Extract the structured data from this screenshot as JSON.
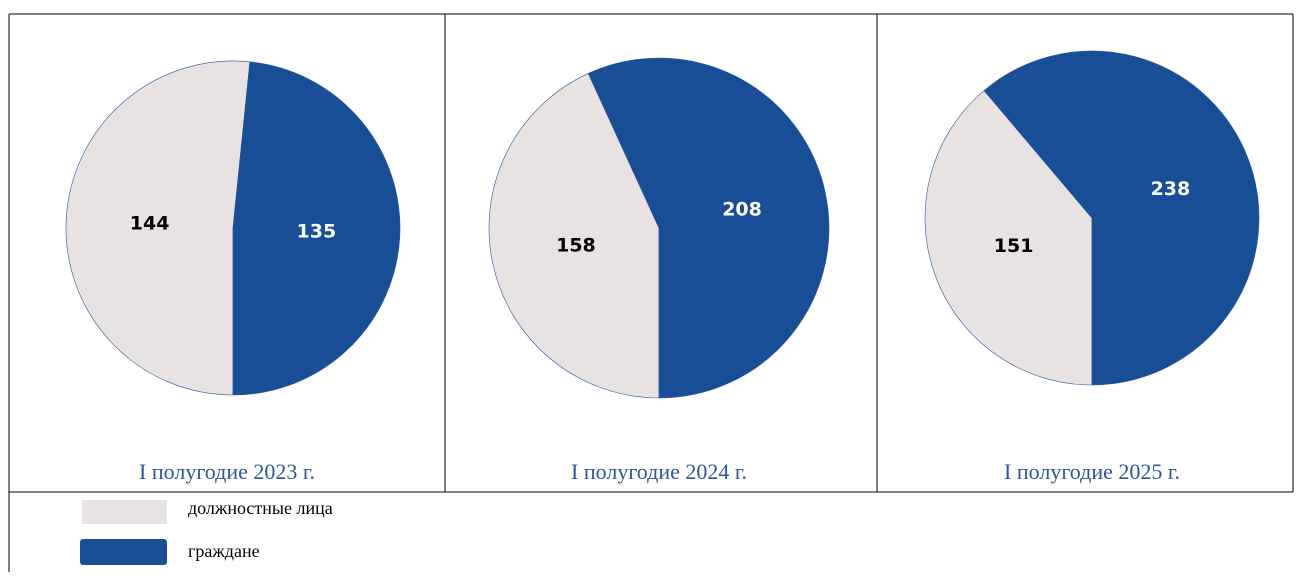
{
  "chart_data": [
    {
      "type": "pie",
      "title": "I полугодие 2023 г.",
      "categories": [
        "должностные лица",
        "граждане"
      ],
      "values": [
        144,
        135
      ],
      "colors": [
        "#e8e2e2",
        "#174e96"
      ]
    },
    {
      "type": "pie",
      "title": "I полугодие 2024 г.",
      "categories": [
        "должностные лица",
        "граждане"
      ],
      "values": [
        158,
        208
      ],
      "colors": [
        "#e8e2e2",
        "#174e96"
      ]
    },
    {
      "type": "pie",
      "title": "I полугодие 2025 г.",
      "categories": [
        "должностные лица",
        "граждане"
      ],
      "values": [
        151,
        238
      ],
      "colors": [
        "#e8e2e2",
        "#174e96"
      ]
    }
  ]
}
